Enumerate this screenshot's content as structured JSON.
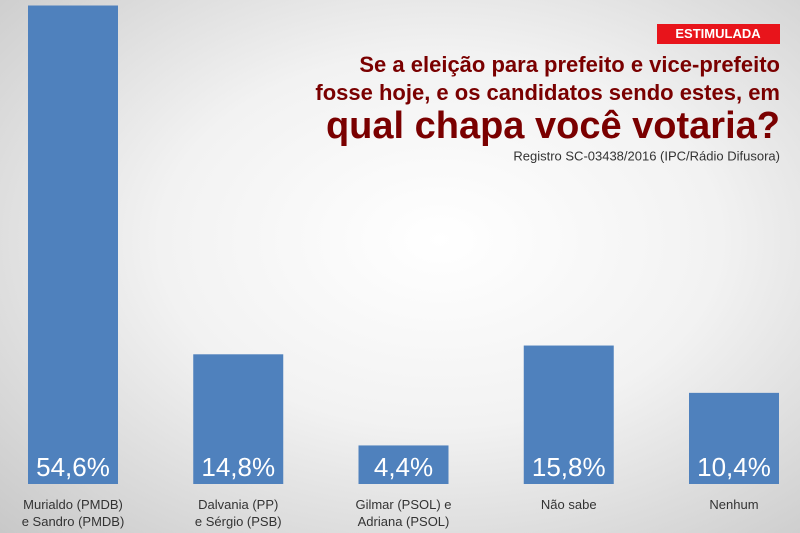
{
  "chart_data": {
    "type": "bar",
    "badge": "ESTIMULADA",
    "title": [
      "Se a eleição para prefeito e vice-prefeito",
      "fosse hoje, e os candidatos sendo estes, em",
      "qual chapa você votaria?"
    ],
    "subtitle": "Registro SC-03438/2016 (IPC/Rádio Difusora)",
    "categories": [
      "Murialdo (PMDB)\ne Sandro (PMDB)",
      "Dalvania (PP)\ne Sérgio (PSB)",
      "Gilmar (PSOL) e\nAdriana (PSOL)",
      "Não sabe",
      "Nenhum"
    ],
    "values": [
      54.6,
      14.8,
      4.4,
      15.8,
      10.4
    ],
    "value_labels": [
      "54,6%",
      "14,8%",
      "4,4%",
      "15,8%",
      "10,4%"
    ],
    "color": "#4f81bd",
    "ylim": [
      0,
      55
    ]
  }
}
